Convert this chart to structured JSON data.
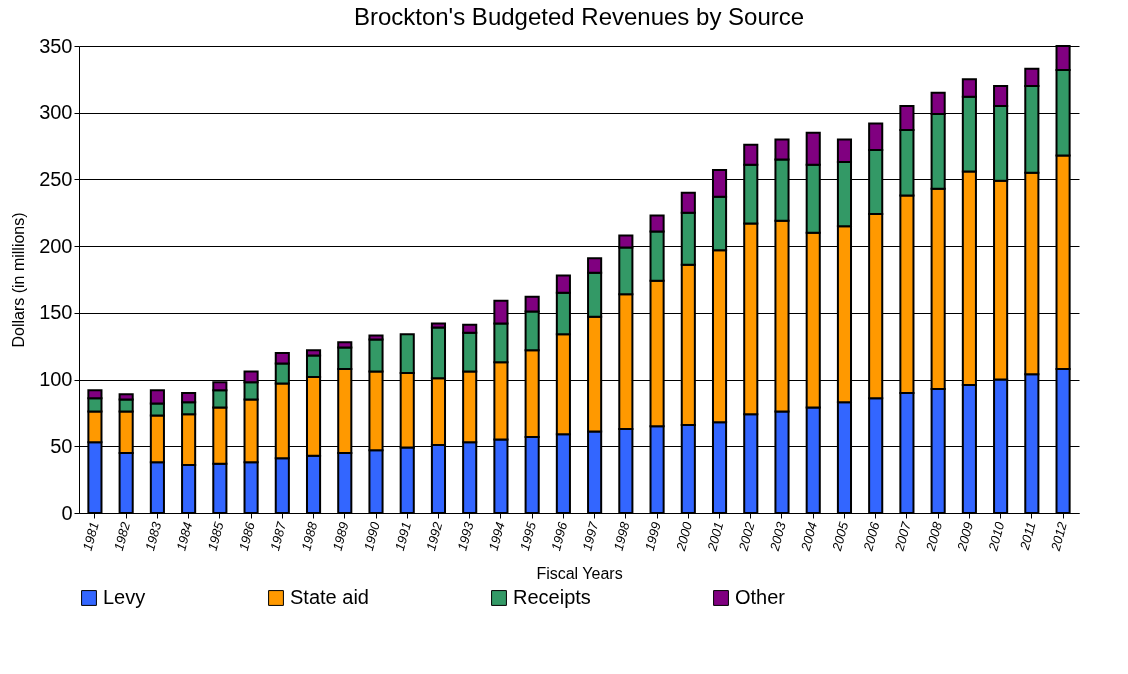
{
  "chart_data": {
    "type": "bar",
    "title": "Brockton's Budgeted Revenues by Source",
    "xlabel": "Fiscal Years",
    "ylabel": "Dollars (in millions)",
    "categories": [
      "1981",
      "1982",
      "1983",
      "1984",
      "1985",
      "1986",
      "1987",
      "1988",
      "1989",
      "1990",
      "1991",
      "1992",
      "1993",
      "1994",
      "1995",
      "1996",
      "1997",
      "1998",
      "1999",
      "2000",
      "2001",
      "2002",
      "2003",
      "2004",
      "2005",
      "2006",
      "2007",
      "2008",
      "2009",
      "2010",
      "2011",
      "2012"
    ],
    "stacked": true,
    "ylim": [
      0,
      350
    ],
    "yticks": [
      0,
      50,
      100,
      150,
      200,
      250,
      300,
      350
    ],
    "grid": "y",
    "legend": "bottom",
    "series": [
      {
        "name": "Levy",
        "color": "#3366ff",
        "values": [
          53,
          45,
          38,
          36,
          37,
          38,
          41,
          43,
          45,
          47,
          49,
          51,
          53,
          55,
          57,
          59,
          61,
          63,
          65,
          66,
          68,
          74,
          76,
          79,
          83,
          86,
          90,
          93,
          96,
          100,
          104,
          108
        ]
      },
      {
        "name": "State aid",
        "color": "#ff9900",
        "values": [
          23,
          31,
          35,
          38,
          42,
          47,
          56,
          59,
          63,
          59,
          56,
          50,
          53,
          58,
          65,
          75,
          86,
          101,
          109,
          120,
          129,
          143,
          143,
          131,
          132,
          138,
          148,
          150,
          160,
          149,
          151,
          160
        ]
      },
      {
        "name": "Receipts",
        "color": "#339966",
        "values": [
          10,
          9,
          9,
          9,
          13,
          13,
          15,
          16,
          16,
          24,
          29,
          38,
          29,
          29,
          29,
          31,
          33,
          35,
          37,
          39,
          40,
          44,
          46,
          51,
          48,
          48,
          49,
          56,
          56,
          56,
          65,
          64
        ]
      },
      {
        "name": "Other",
        "color": "#800080",
        "values": [
          6,
          4,
          10,
          7,
          6,
          8,
          8,
          4,
          4,
          3,
          null,
          3,
          6,
          17,
          11,
          13,
          11,
          9,
          12,
          15,
          20,
          15,
          15,
          24,
          17,
          20,
          18,
          16,
          13,
          15,
          13,
          18
        ]
      }
    ]
  }
}
